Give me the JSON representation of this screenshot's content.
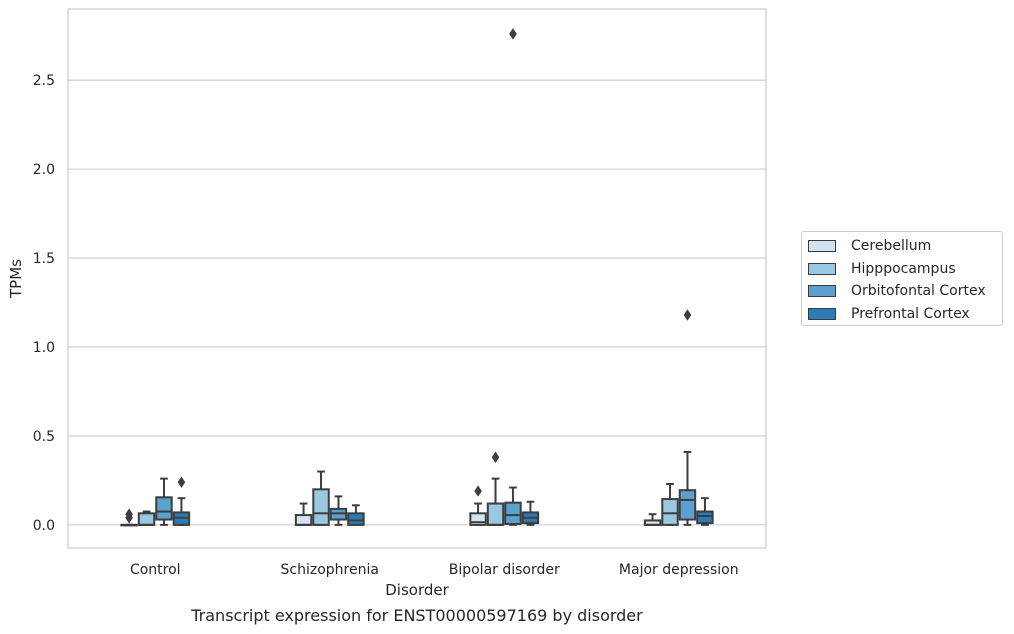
{
  "chart_data": {
    "type": "box",
    "xlabel": "Disorder",
    "ylabel": "TPMs",
    "caption": "Transcript expression for ENST00000597169 by disorder",
    "ylim": [
      -0.13,
      2.9
    ],
    "yticks": [
      0.0,
      0.5,
      1.0,
      1.5,
      2.0,
      2.5
    ],
    "ytick_labels": [
      "0.0",
      "0.5",
      "1.0",
      "1.5",
      "2.0",
      "2.5"
    ],
    "grid": "horizontal",
    "legend_position": "right",
    "categories": [
      "Control",
      "Schizophrenia",
      "Bipolar disorder",
      "Major depression"
    ],
    "series": [
      {
        "name": "Cerebellum",
        "color": "#d2e3f3",
        "boxes": [
          {
            "q1": 0.0,
            "median": 0.0,
            "q3": 0.0,
            "whisker_low": 0.0,
            "whisker_high": 0.0,
            "outliers": [
              0.04,
              0.06
            ]
          },
          {
            "q1": 0.0,
            "median": 0.0,
            "q3": 0.055,
            "whisker_low": 0.0,
            "whisker_high": 0.12,
            "outliers": []
          },
          {
            "q1": 0.0,
            "median": 0.015,
            "q3": 0.065,
            "whisker_low": 0.0,
            "whisker_high": 0.12,
            "outliers": [
              0.19
            ]
          },
          {
            "q1": 0.0,
            "median": 0.0,
            "q3": 0.025,
            "whisker_low": 0.0,
            "whisker_high": 0.06,
            "outliers": []
          }
        ]
      },
      {
        "name": "Hipppocampus",
        "color": "#9ac8e0",
        "boxes": [
          {
            "q1": 0.0,
            "median": 0.0,
            "q3": 0.065,
            "whisker_low": 0.0,
            "whisker_high": 0.075,
            "outliers": []
          },
          {
            "q1": 0.0,
            "median": 0.065,
            "q3": 0.2,
            "whisker_low": 0.0,
            "whisker_high": 0.3,
            "outliers": []
          },
          {
            "q1": 0.0,
            "median": 0.0,
            "q3": 0.12,
            "whisker_low": 0.0,
            "whisker_high": 0.26,
            "outliers": [
              0.38
            ]
          },
          {
            "q1": 0.0,
            "median": 0.065,
            "q3": 0.145,
            "whisker_low": 0.0,
            "whisker_high": 0.23,
            "outliers": []
          }
        ]
      },
      {
        "name": "Orbitofontal Cortex",
        "color": "#5aa1cf",
        "boxes": [
          {
            "q1": 0.03,
            "median": 0.075,
            "q3": 0.155,
            "whisker_low": 0.0,
            "whisker_high": 0.26,
            "outliers": []
          },
          {
            "q1": 0.03,
            "median": 0.065,
            "q3": 0.09,
            "whisker_low": 0.0,
            "whisker_high": 0.16,
            "outliers": []
          },
          {
            "q1": 0.005,
            "median": 0.055,
            "q3": 0.125,
            "whisker_low": 0.0,
            "whisker_high": 0.21,
            "outliers": [
              2.76
            ]
          },
          {
            "q1": 0.03,
            "median": 0.14,
            "q3": 0.195,
            "whisker_low": 0.0,
            "whisker_high": 0.41,
            "outliers": [
              1.18
            ]
          }
        ]
      },
      {
        "name": "Prefrontal Cortex",
        "color": "#2c7bb6",
        "boxes": [
          {
            "q1": 0.0,
            "median": 0.04,
            "q3": 0.07,
            "whisker_low": 0.0,
            "whisker_high": 0.15,
            "outliers": [
              0.24
            ]
          },
          {
            "q1": 0.0,
            "median": 0.025,
            "q3": 0.065,
            "whisker_low": 0.0,
            "whisker_high": 0.11,
            "outliers": []
          },
          {
            "q1": 0.01,
            "median": 0.04,
            "q3": 0.07,
            "whisker_low": 0.0,
            "whisker_high": 0.13,
            "outliers": []
          },
          {
            "q1": 0.01,
            "median": 0.05,
            "q3": 0.075,
            "whisker_low": 0.0,
            "whisker_high": 0.15,
            "outliers": []
          }
        ]
      }
    ]
  }
}
